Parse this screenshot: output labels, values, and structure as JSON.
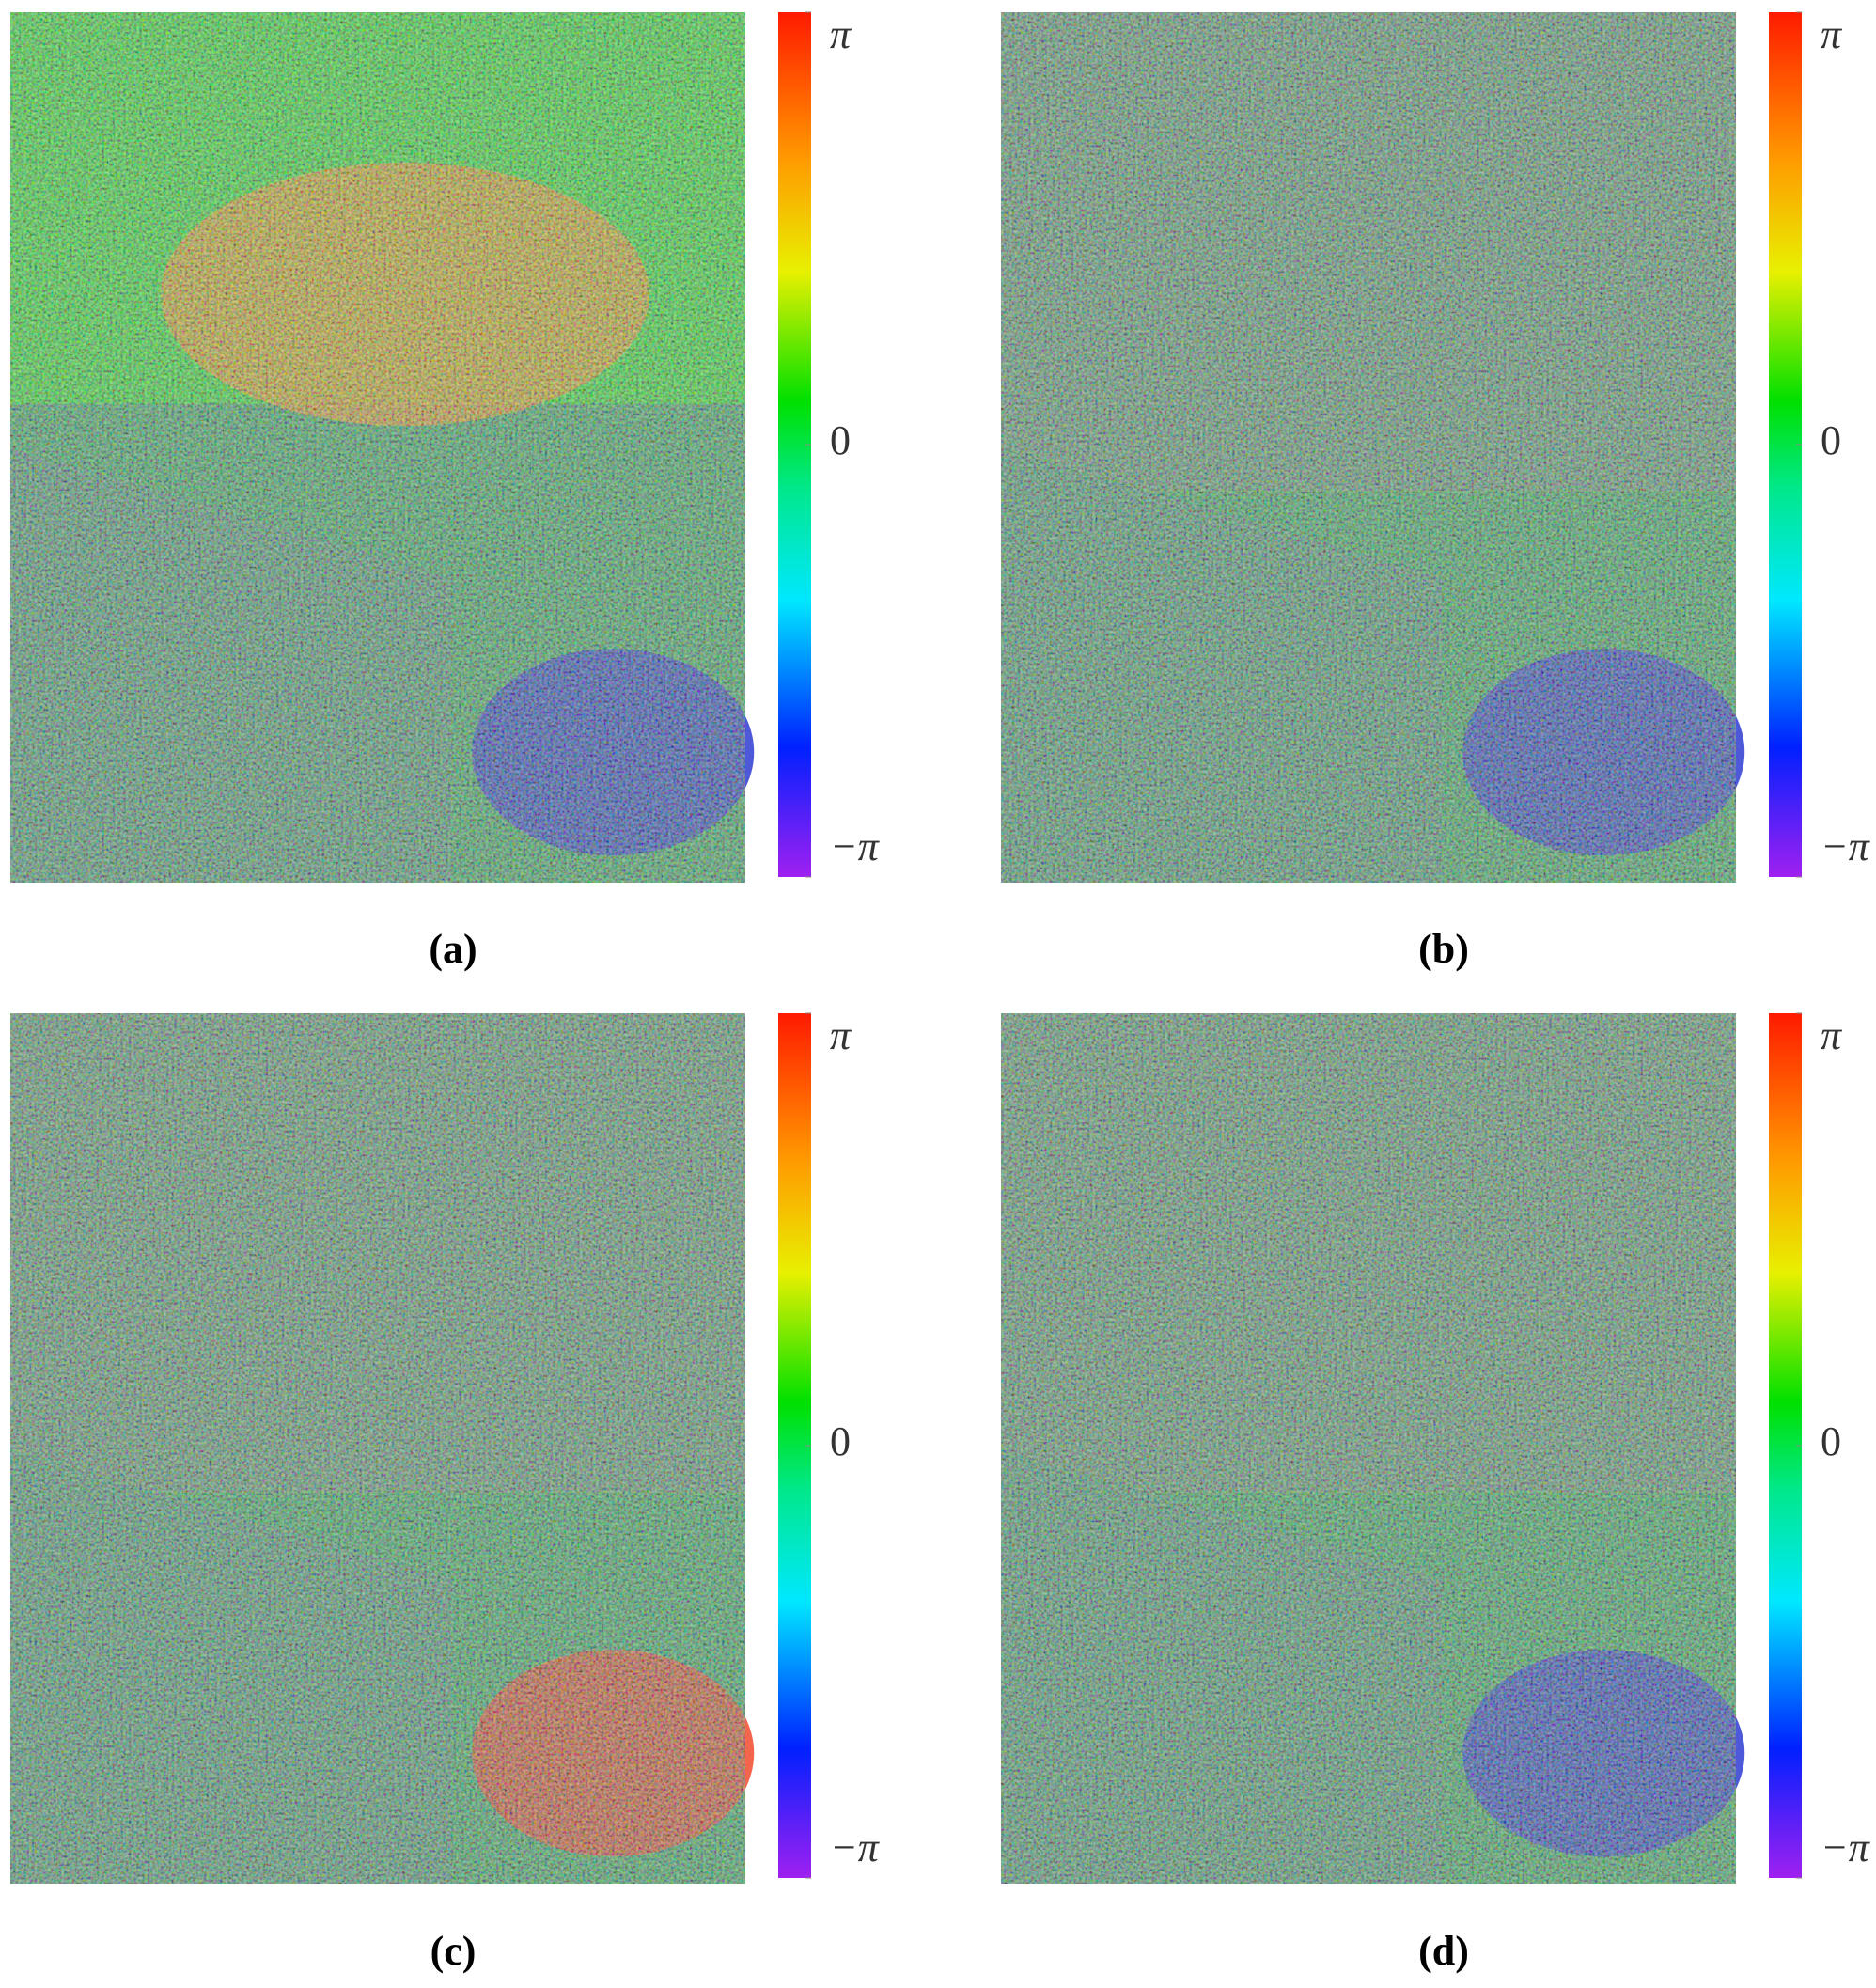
{
  "panels": [
    {
      "label": "(a)",
      "colorbar": {
        "lim": [
          -3.14159,
          3.14159
        ],
        "ticks": [
          {
            "value": 3.14159,
            "label": "π"
          },
          0,
          {
            "value": -3.14159,
            "label": "−π"
          }
        ]
      }
    },
    {
      "label": "(b)",
      "colorbar": {
        "lim": [
          -3.14159,
          3.14159
        ],
        "ticks": [
          {
            "value": 3.14159,
            "label": "π"
          },
          0,
          {
            "value": -3.14159,
            "label": "−π"
          }
        ]
      }
    },
    {
      "label": "(c)",
      "colorbar": {
        "lim": [
          -3.14159,
          3.14159
        ],
        "ticks": [
          {
            "value": 3.14159,
            "label": "π"
          },
          0,
          {
            "value": -3.14159,
            "label": "−π"
          }
        ]
      }
    },
    {
      "label": "(d)",
      "colorbar": {
        "lim": [
          -3.14159,
          3.14159
        ],
        "ticks": [
          {
            "value": 3.14159,
            "label": "π"
          },
          0,
          {
            "value": -3.14159,
            "label": "−π"
          }
        ]
      }
    }
  ]
}
